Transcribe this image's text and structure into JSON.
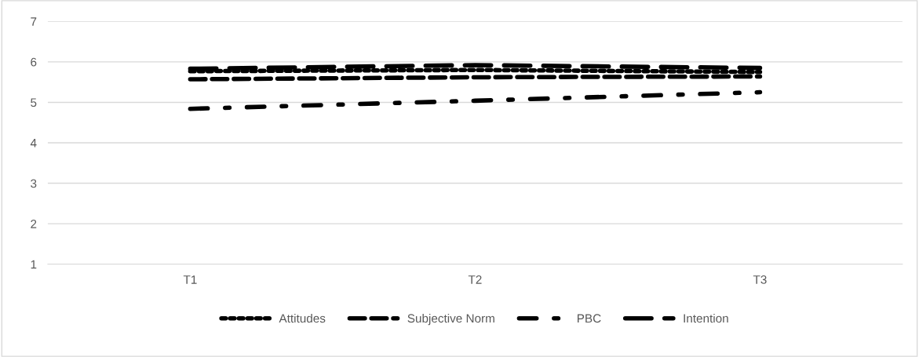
{
  "chart_data": {
    "type": "line",
    "categories": [
      "T1",
      "T2",
      "T3"
    ],
    "series": [
      {
        "name": "Attitudes",
        "color": "#000000",
        "values": [
          5.77,
          5.8,
          5.75
        ],
        "line_style": "dotted"
      },
      {
        "name": "Subjective Norm",
        "color": "#000000",
        "values": [
          5.57,
          5.62,
          5.64
        ],
        "line_style": "dashed"
      },
      {
        "name": "PBC",
        "color": "#000000",
        "values": [
          4.84,
          5.04,
          5.25
        ],
        "line_style": "dashdotdot"
      },
      {
        "name": "Intention",
        "color": "#000000",
        "values": [
          5.83,
          5.92,
          5.85
        ],
        "line_style": "longdash"
      }
    ],
    "ylim": [
      1,
      7
    ],
    "yticks": [
      1,
      2,
      3,
      4,
      5,
      6,
      7
    ],
    "grid": "y",
    "legend": "bottom",
    "marker": "none"
  }
}
